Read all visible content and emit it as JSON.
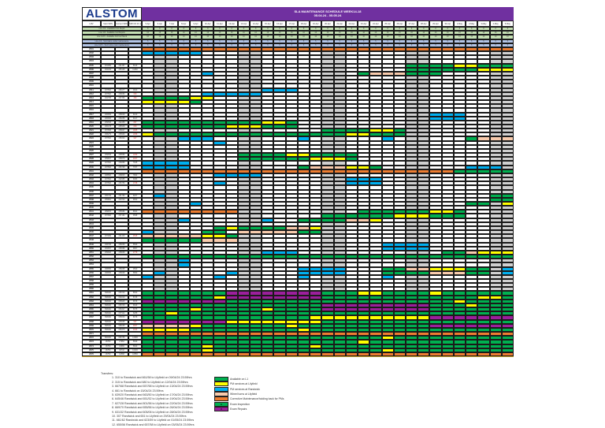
{
  "header": {
    "logo": "ALSTOM",
    "title": "SLA MAINTENANCE SCHEDULE WEEK14-18",
    "date_range": "05.04.24 - 05.05.24",
    "columns": [
      "LRV",
      "Start SRN",
      "Current SRN",
      "SRN till 10 million"
    ],
    "days": [
      "5-Apr",
      "6-Apr",
      "7-Apr",
      "8-Apr",
      "9-Apr",
      "10-Apr",
      "11-Apr",
      "12-Apr",
      "13-Apr",
      "14-Apr",
      "15-Apr",
      "16-Apr",
      "17-Apr",
      "18-Apr",
      "19-Apr",
      "20-Apr",
      "21-Apr",
      "22-Apr",
      "23-Apr",
      "24-Apr",
      "25-Apr",
      "26-Apr",
      "27-Apr",
      "28-Apr",
      "29-Apr",
      "30-Apr",
      "1-May",
      "2-May",
      "3-May",
      "4-May",
      "5-May"
    ],
    "weekend_columns": [
      1,
      2,
      8,
      9,
      15,
      16,
      22,
      23,
      29,
      30
    ]
  },
  "summary_rows": [
    {
      "label": "Line 1/2 - Available from Depot",
      "value": "8",
      "color": "#c6e0b4"
    },
    {
      "label": "Line 1/2 - Available Cell Depots",
      "value": "16",
      "color": "#c6e0b4"
    },
    {
      "label": "Line 1/2/3 - Available Full Cell Stock",
      "value": "10",
      "color": "#c6e0b4"
    },
    {
      "label": "Line 1/2 - SLA trains under maintenance",
      "value": "5",
      "color": "#b4c6e7"
    },
    {
      "label": "Line 1/2/3 - SLA Units under maintenance",
      "value": "5",
      "color": "#b4c6e7"
    }
  ],
  "status_colors": {
    "G": "#00b050",
    "Y": "#ffff00",
    "B": "#00b0f0",
    "P": "#f8cbad",
    "O": "#ed7d31",
    "M": "#9c1f9c",
    "weekend": "#d0d0d0"
  },
  "rows": [
    [
      "2001",
      "",
      "",
      "",
      "OOOOOOOOOOOOOOOOOOOOOOOOOOOOOOO"
    ],
    [
      "2002",
      "",
      "",
      "",
      "BBBBB.........................."
    ],
    [
      "2003",
      "",
      "",
      "",
      "..............................."
    ],
    [
      "2004",
      "",
      "",
      "",
      "..............................."
    ],
    [
      "2005",
      "261995",
      "261387",
      "5916",
      "......................GGGGYYGGG"
    ],
    [
      "2006",
      "262105",
      "255105",
      "11460",
      "......................GGGGGGYYY"
    ],
    [
      "2007",
      "",
      "",
      "",
      ".....B............GPPPGGG......"
    ],
    [
      "2008",
      "",
      "",
      "",
      "..............................."
    ],
    [
      "2009",
      "",
      "",
      "",
      "..............................."
    ],
    [
      "2010",
      "",
      "",
      "",
      "..............................."
    ],
    [
      "2011",
      "267500",
      "268177",
      "4820",
      "..........BBB.................."
    ],
    [
      "2012",
      "267500",
      "268080",
      "660",
      ".....BBBBB....................."
    ],
    [
      "2013",
      "262758",
      "267396",
      "360",
      "GGGGYY........................."
    ],
    [
      "2014",
      "",
      "",
      "",
      "YYYYG.........................."
    ],
    [
      "2015",
      "",
      "",
      "",
      "..............................."
    ],
    [
      "2016",
      "",
      "",
      "",
      "..............................."
    ],
    [
      "2017",
      "266669",
      "258009",
      "6160",
      "........................BBB...."
    ],
    [
      "2018",
      "266605",
      "259258",
      "6017",
      "........................BBB...."
    ],
    [
      "2019",
      "259545",
      "262458",
      "867",
      "GGGGGGGGGGYYG.................."
    ],
    [
      "2020",
      "260178",
      "265938",
      "848",
      "GGGGGGGYYYGGG.................."
    ],
    [
      "2021",
      "257658",
      "258637",
      "1965",
      "...............GGGGYYG........."
    ],
    [
      "2022",
      "258279",
      "258969",
      "1058",
      "YGGGGGGGGGGGGGGGGYYGGG........."
    ],
    [
      "2023",
      "257500",
      "258300",
      "907",
      "...BBB.......B......B......GPPP"
    ],
    [
      "2024",
      "",
      "",
      "",
      "......B........................"
    ],
    [
      "2025",
      "",
      "",
      "",
      "..............................."
    ],
    [
      "2026",
      "",
      "",
      "",
      "..............................."
    ],
    [
      "2027",
      "259539",
      "258589",
      "1299",
      "........GGGGYYGGGG............."
    ],
    [
      "2028",
      "259827",
      "259679",
      "2037",
      "........GGGGGGYYYG............."
    ],
    [
      "2029",
      "267500",
      "266888",
      "7635",
      "BBBB..........................."
    ],
    [
      "2030",
      "267500",
      "259798",
      "7767",
      "BBBB.........GPPPYYG.......BBB."
    ],
    [
      "2031",
      "",
      "",
      "",
      "OOOOOOOOOOOOOOOOOOOOOOOOOOGGGGG"
    ],
    [
      "2032",
      "268582",
      "268825",
      "7862",
      "......BBBB....................."
    ],
    [
      "2033",
      "267500",
      "262985",
      "6383",
      ".................BBB..........."
    ],
    [
      "2034",
      "267500",
      "266750",
      "1748",
      "......B..........BBB..........."
    ],
    [
      "2035",
      "",
      "",
      "",
      "..............................."
    ],
    [
      "2036",
      "",
      "",
      "",
      "..............................."
    ],
    [
      "2037",
      "256749",
      "251780",
      "9207",
      ".B...........................GG"
    ],
    [
      "2038",
      "255881",
      "249704",
      "9650",
      ".............................GG"
    ],
    [
      "2039",
      "",
      "",
      "",
      "....B......................GG.Y"
    ],
    [
      "2040",
      "",
      "",
      "",
      "..............................."
    ],
    [
      "2041",
      "259870",
      "255586",
      "8664",
      "OOOOOOOO..........GGGGGGYYG...."
    ],
    [
      "2042",
      "257890",
      "257182",
      "3698",
      "...............GGGGGGYYYGGG...."
    ],
    [
      "2043",
      "",
      "",
      "",
      "...B......B..GGGGPPY..........."
    ],
    [
      "2044",
      "",
      "",
      "",
      "..............................."
    ],
    [
      "2045",
      "",
      "",
      "",
      "......GYGGGGPPY................"
    ],
    [
      "2046",
      "",
      "",
      "",
      "B....GG.PPPPPGG................"
    ],
    [
      "2047",
      "257999",
      "261400",
      "2545",
      "PPPPPYYG......................."
    ],
    [
      "2048",
      "",
      "",
      "",
      "GGGGGPPP......................."
    ],
    [
      "2049",
      "258768",
      "258269",
      "5569",
      "....................BBBB......."
    ],
    [
      "2050",
      "252657",
      "256588",
      "6857",
      "....................BBBB......."
    ],
    [
      "2051",
      "259626",
      "258668",
      "2778",
      "..........BBB............GGPYYY"
    ],
    [
      "2052",
      "",
      "",
      "",
      "GGGGGGGGGGGGGGGGGGGGGGGGGGGGGGG"
    ],
    [
      "2053",
      "",
      "",
      "",
      "...B..........................."
    ],
    [
      "2054",
      "",
      "",
      "",
      "...B..........................."
    ],
    [
      "2055",
      "258655",
      "258295",
      "4560",
      ".............BBBB...GGPPYYYGG.B"
    ],
    [
      "2056",
      "258655",
      "258698",
      "5850",
      ".B.....B.....BBBB...GGGGPPPGG.B"
    ],
    [
      "2057",
      "",
      "",
      "",
      "B.....B......B......B.........."
    ],
    [
      "2058",
      "",
      "",
      "",
      "..............................."
    ],
    [
      "2059",
      "",
      "",
      "",
      "..............................."
    ],
    [
      "2060",
      "",
      "",
      "",
      "..............................."
    ],
    [
      "2061",
      "658000",
      "658746",
      "8660",
      "GGGGGGGMMMMMMMMGGGYYGGGGYGGGGGG"
    ],
    [
      "2062",
      "658000",
      "652049",
      "5745",
      "GGGGGGYMMMMMMMMGGGGGGGGGGGGGYYG"
    ],
    [
      "2063",
      "658000",
      "658925",
      "6676",
      "MMMMMMMGGGGGGGGGGGGGGGGGGGYGGGG"
    ],
    [
      "2064",
      "658000",
      "658745",
      "6629",
      "GGGGGGGGGGGGGGGMMMMMMMMMGGGYGGG"
    ],
    [
      "2065",
      "658000",
      "659327",
      "5075",
      "GGGGYGGGGGYGGGGMMMMMMMMMGGGGGGG"
    ],
    [
      "2066",
      "658000",
      "657932",
      "6288",
      "GGYGGGGGGGGGGGGGGGGGGGGGGGGGGGG"
    ],
    [
      "2067",
      "658000",
      "658630",
      "8978",
      "GGGGGGGGGGGGGGYYYYYYYYYYMMMMMMM"
    ],
    [
      "2068",
      "658000",
      "635095",
      "597",
      "MMMMMMMYYYYYYYYGGGGGGGGGGGGGGGG"
    ],
    [
      "2069",
      "588000",
      "585095",
      "2967",
      "PPPPYGGGGGGGYGGGGGGGGGGGMMMMMMM"
    ],
    [
      "2070",
      "658000",
      "658375",
      "2326",
      "YYYYGGGGGGGGGYGGGGGGGGGGGGGGGGG"
    ],
    [
      "2071",
      "",
      "",
      "",
      "OOOOOOOOOOOOOOOOOOOOOOOOOOOOOOO"
    ],
    [
      "2072",
      "882000",
      "895755",
      "12996",
      "GGGGGGGGGGGGGGGGGGGGYGGGGGGGGGG"
    ],
    [
      "2073",
      "18750",
      "27952",
      "5849",
      "GGGGGGGGGGGGGGGGGGYGGGGGGGGGGGG"
    ],
    [
      "2074",
      "18750",
      "33986",
      "5820",
      "GGGGGYGGGGGGGGYGGGGGGGGGGGGGGGG"
    ],
    [
      "2075",
      "18750",
      "38740",
      "16200",
      "GGGGGYGGGGGGGGGGGGGGYGGGGGGGGGG"
    ],
    [
      "2076",
      "18750",
      "32588",
      "18850",
      "OOOOOOOOOOOOOOOOOOOOOOOOOOOOOOO"
    ]
  ],
  "notes": {
    "heading": "Transfers:",
    "items": [
      "1. 310 to Randwick and 661/58 to Lilyfield on 09/04/24 23:59hrs",
      "2. 315 to Randwick and 680 to Lilyfield on 12/04/24 23:59hrs",
      "3. 667/68 Randwick and 657/58 to Lilyfield on 13/04/24 23:59hrs",
      "4. 661 to Randwick on 15/04/24 23:59hrs",
      "5. 639/20 Randwick and 663/50 to Lilyfield on 17/04/24 23:59hrs",
      "6. 645/46 Randwick and 651/52 to Lilyfield on 19/04/24 23:59hrs",
      "7. 627/28 Randwick and 801/56 to Lilyfield on 22/04/24 23:59hrs",
      "8. 669/70 Randwick and 655/56 to Lilyfield on 26/04/24 23:59hrs",
      "9. 631/32 Randwick and 605/06 to Lilyfield on 28/04/24 23:59hrs",
      "10. 307 Randwick and 651 to Lilyfield on 29/04/24 23:59hrs",
      "11. 661/62 Randwick and 623/59 to Lilyfield on 01/05/24 23:59hrs",
      "12. 655/56 Randwick and 657/58 to Lilyfield on 03/05/24 23:59hrs"
    ]
  },
  "legend": [
    {
      "code": "G",
      "label": "Available on L1",
      "swatch_text": ""
    },
    {
      "code": "Y",
      "label": "PM services at Lilyfield",
      "swatch_text": ""
    },
    {
      "code": "B",
      "label": "PM services at Randwick",
      "swatch_text": ""
    },
    {
      "code": "P",
      "label": "Wheel turns at Lilyfield",
      "swatch_text": ""
    },
    {
      "code": "O",
      "label": "Corrective Maintenance/holding back for PMs",
      "swatch_text": ""
    },
    {
      "code": "G",
      "label": "Exam Inspection",
      "swatch_text": "E"
    },
    {
      "code": "M",
      "label": "Exam Repairs",
      "swatch_text": "R"
    }
  ]
}
